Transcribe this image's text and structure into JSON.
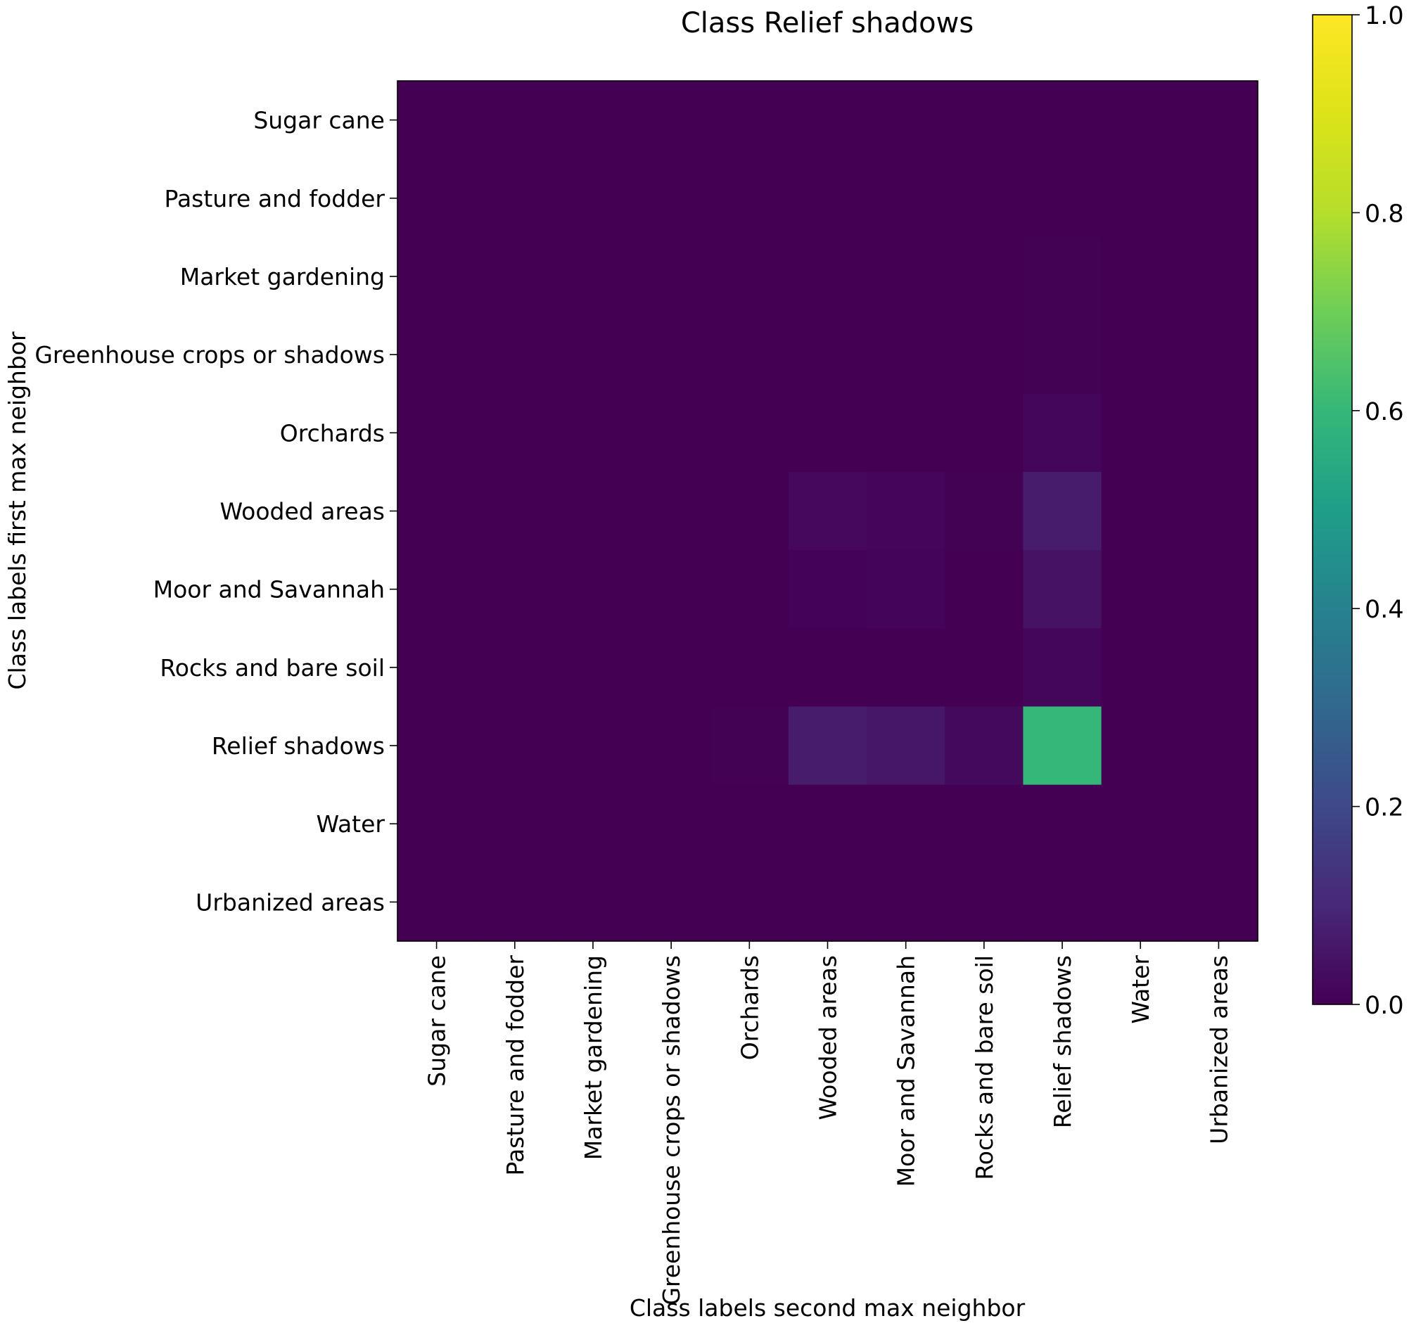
{
  "chart_data": {
    "type": "heatmap",
    "title": "Class Relief shadows",
    "xlabel": "Class labels second max neighbor",
    "ylabel": "Class labels first max neighbor",
    "x_categories": [
      "Sugar cane",
      "Pasture and fodder",
      "Market gardening",
      "Greenhouse crops or shadows",
      "Orchards",
      "Wooded areas",
      "Moor and Savannah",
      "Rocks and bare soil",
      "Relief shadows",
      "Water",
      "Urbanized areas"
    ],
    "y_categories": [
      "Sugar cane",
      "Pasture and fodder",
      "Market gardening",
      "Greenhouse crops or shadows",
      "Orchards",
      "Wooded areas",
      "Moor and Savannah",
      "Rocks and bare soil",
      "Relief shadows",
      "Water",
      "Urbanized areas"
    ],
    "values": [
      [
        0,
        0,
        0,
        0,
        0,
        0,
        0,
        0,
        0,
        0,
        0
      ],
      [
        0,
        0,
        0,
        0,
        0,
        0,
        0,
        0,
        0,
        0,
        0
      ],
      [
        0,
        0,
        0,
        0,
        0,
        0,
        0,
        0,
        0.003,
        0,
        0
      ],
      [
        0,
        0,
        0,
        0,
        0,
        0,
        0,
        0,
        0.002,
        0,
        0
      ],
      [
        0,
        0,
        0,
        0,
        0,
        0,
        0,
        0,
        0.012,
        0,
        0
      ],
      [
        0,
        0,
        0,
        0,
        0,
        0.018,
        0.014,
        0.002,
        0.07,
        0,
        0
      ],
      [
        0,
        0,
        0,
        0,
        0,
        0.005,
        0.007,
        0.001,
        0.045,
        0,
        0
      ],
      [
        0,
        0,
        0,
        0,
        0,
        0.001,
        0.001,
        0,
        0.012,
        0,
        0
      ],
      [
        0,
        0,
        0,
        0,
        0.003,
        0.07,
        0.055,
        0.02,
        0.6,
        0,
        0
      ],
      [
        0,
        0,
        0,
        0,
        0,
        0,
        0,
        0,
        0,
        0,
        0
      ],
      [
        0,
        0,
        0,
        0,
        0,
        0,
        0,
        0,
        0,
        0,
        0
      ]
    ],
    "colormap": "viridis",
    "colorbar": {
      "min": 0.0,
      "max": 1.0,
      "ticks": [
        "0.0",
        "0.2",
        "0.4",
        "0.6",
        "0.8",
        "1.0"
      ]
    },
    "grid": false,
    "legend": "colorbar-right"
  }
}
